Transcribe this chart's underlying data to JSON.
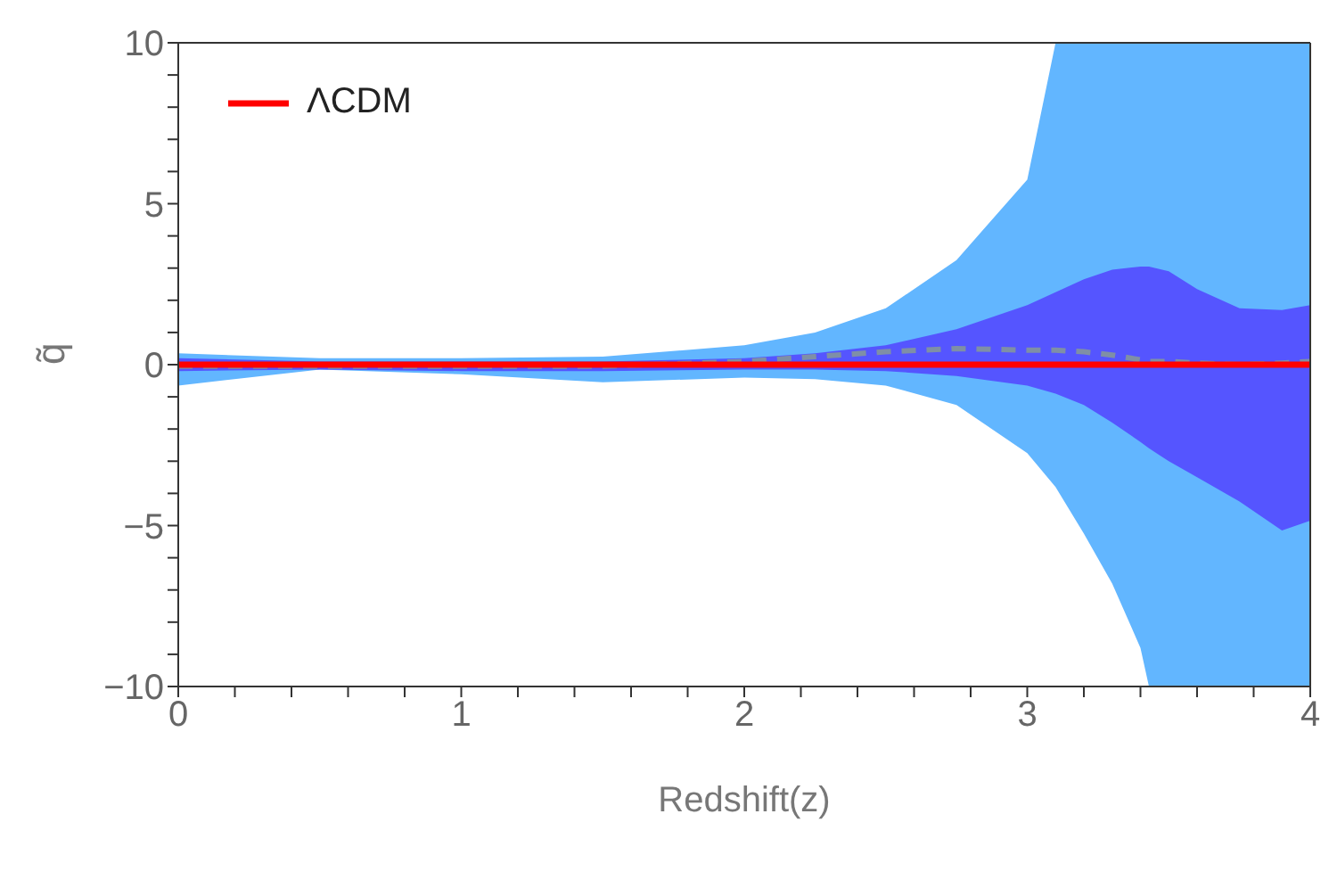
{
  "chart_data": {
    "type": "line",
    "xlabel": "Redshift(z)",
    "ylabel": "q̃",
    "legend": "top left",
    "x": [
      0,
      0.5,
      1,
      1.5,
      2,
      2.25,
      2.5,
      2.75,
      3,
      3.1,
      3.2,
      3.3,
      3.4,
      3.43,
      3.5,
      3.6,
      3.75,
      3.9,
      4
    ],
    "series": [
      {
        "color": "#62b6ff",
        "values": [
          null,
          null,
          null,
          null,
          null,
          null,
          null,
          null,
          null,
          null,
          null,
          null,
          null,
          null,
          null,
          null,
          null,
          null,
          null
        ],
        "lower": [
          -0.65,
          -0.15,
          -0.3,
          -0.55,
          -0.4,
          -0.45,
          -0.65,
          -1.25,
          -2.75,
          -3.8,
          -5.25,
          -6.8,
          -8.8,
          -10,
          -10,
          -10,
          -10,
          -10,
          -10
        ],
        "upper": [
          0.35,
          0.2,
          0.2,
          0.25,
          0.6,
          1,
          1.75,
          3.25,
          5.75,
          10,
          10,
          10,
          10,
          10,
          10,
          10,
          10,
          10,
          10
        ]
      },
      {
        "color": "#5555ff",
        "values": [
          null,
          null,
          null,
          null,
          null,
          null,
          null,
          null,
          null,
          null,
          null,
          null,
          null,
          null,
          null,
          null,
          null,
          null,
          null
        ],
        "lower": [
          -0.2,
          -0.15,
          -0.2,
          -0.2,
          -0.15,
          -0.15,
          -0.2,
          -0.35,
          -0.65,
          -0.9,
          -1.25,
          -1.8,
          -2.4,
          -2.6,
          -3,
          -3.5,
          -4.25,
          -5.15,
          -4.85
        ],
        "upper": [
          0.2,
          0.1,
          0.1,
          0.1,
          0.2,
          0.35,
          0.6,
          1.1,
          1.85,
          2.25,
          2.65,
          2.95,
          3.05,
          3.05,
          2.9,
          2.35,
          1.75,
          1.7,
          1.85
        ]
      },
      {
        "color": "#7f8fa6",
        "line_style": "dashed",
        "values": [
          -0.05,
          -0.05,
          -0.05,
          -0.05,
          0.1,
          0.25,
          0.4,
          0.5,
          0.45,
          0.45,
          0.4,
          0.3,
          0.15,
          0.1,
          0.1,
          0.05,
          0,
          0.05,
          0.1
        ]
      },
      {
        "name": "ΛCDM",
        "color": "#ff0000",
        "line_style": "solid",
        "values": [
          0,
          0,
          0,
          0,
          0,
          0,
          0,
          0,
          0,
          0,
          0,
          0,
          0,
          0,
          0,
          0,
          0,
          0,
          0
        ]
      }
    ],
    "xlim": [
      0,
      4
    ],
    "xticks": [
      0,
      {
        "value": 0.2,
        "label": null
      },
      {
        "value": 0.4,
        "label": null
      },
      {
        "value": 0.6,
        "label": null
      },
      {
        "value": 0.8,
        "label": null
      },
      1,
      {
        "value": 1.2,
        "label": null
      },
      {
        "value": 1.4,
        "label": null
      },
      {
        "value": 1.6,
        "label": null
      },
      {
        "value": 1.8,
        "label": null
      },
      2,
      {
        "value": 2.2,
        "label": null
      },
      {
        "value": 2.4,
        "label": null
      },
      {
        "value": 2.6,
        "label": null
      },
      {
        "value": 2.8,
        "label": null
      },
      3,
      {
        "value": 3.2,
        "label": null
      },
      {
        "value": 3.4,
        "label": null
      },
      {
        "value": 3.6,
        "label": null
      },
      {
        "value": 3.8,
        "label": null
      },
      4
    ],
    "ylim": [
      -10,
      10
    ],
    "yticks": [
      {
        "value": -10,
        "label": "−10"
      },
      {
        "value": -9,
        "label": null
      },
      {
        "value": -8,
        "label": null
      },
      {
        "value": -7,
        "label": null
      },
      {
        "value": -6,
        "label": null
      },
      {
        "value": -5,
        "label": "−5"
      },
      {
        "value": -4,
        "label": null
      },
      {
        "value": -3,
        "label": null
      },
      {
        "value": -2,
        "label": null
      },
      {
        "value": -1,
        "label": null
      },
      0,
      {
        "value": 1,
        "label": null
      },
      {
        "value": 2,
        "label": null
      },
      {
        "value": 3,
        "label": null
      },
      {
        "value": 4,
        "label": null
      },
      5,
      {
        "value": 6,
        "label": null
      },
      {
        "value": 7,
        "label": null
      },
      {
        "value": 8,
        "label": null
      },
      {
        "value": 9,
        "label": null
      },
      10
    ]
  }
}
